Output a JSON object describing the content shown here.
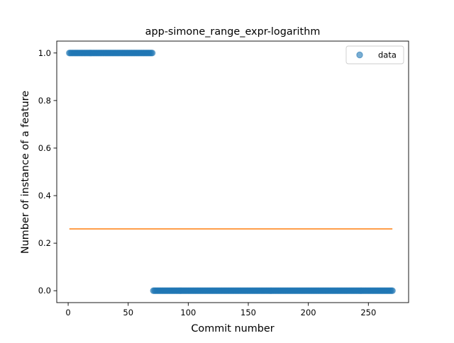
{
  "chart_data": {
    "type": "scatter",
    "title": "app-simone_range_expr-logarithm",
    "xlabel": "Commit number",
    "ylabel": "Number of instance of a feature",
    "xlim": [
      -9.5,
      283.5
    ],
    "ylim": [
      -0.05,
      1.05
    ],
    "xticks": [
      0,
      50,
      100,
      150,
      200,
      250
    ],
    "yticks": [
      0.0,
      0.2,
      0.4,
      0.6,
      0.8,
      1.0
    ],
    "xtick_labels": [
      "0",
      "50",
      "100",
      "150",
      "200",
      "250"
    ],
    "ytick_labels": [
      "0.0",
      "0.2",
      "0.4",
      "0.6",
      "0.8",
      "1.0"
    ],
    "grid": false,
    "legend": {
      "position": "top-right",
      "entries": [
        "data"
      ]
    },
    "series": [
      {
        "name": "data",
        "kind": "points",
        "color": "#1f77b4",
        "segments": [
          {
            "x_start": 1,
            "x_end": 70,
            "y": 1
          },
          {
            "x_start": 71,
            "x_end": 270,
            "y": 0
          }
        ]
      },
      {
        "kind": "line",
        "color": "#ff7f0e",
        "x": [
          1,
          270
        ],
        "y": [
          0.26,
          0.26
        ]
      }
    ]
  }
}
